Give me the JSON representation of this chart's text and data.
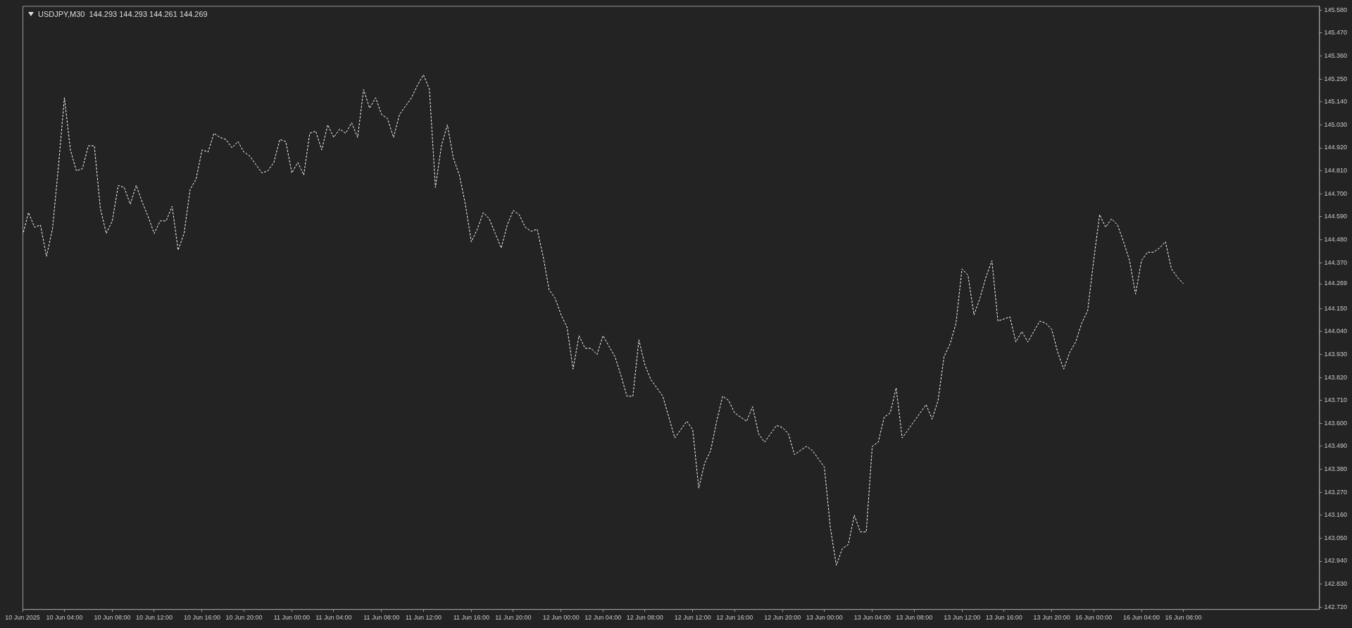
{
  "chart_data": {
    "type": "line",
    "title": "USDJPY,M30",
    "subtitle": "144.293 144.293 144.261 144.269",
    "categories": [
      "10 Jun 2025",
      null,
      null,
      null,
      null,
      null,
      null,
      "10 Jun 04:00",
      null,
      null,
      null,
      null,
      null,
      null,
      null,
      "10 Jun 08:00",
      null,
      null,
      null,
      null,
      null,
      null,
      "10 Jun 12:00",
      null,
      null,
      null,
      null,
      null,
      null,
      null,
      "10 Jun 16:00",
      null,
      null,
      null,
      null,
      null,
      null,
      "10 Jun 20:00",
      null,
      null,
      null,
      null,
      null,
      null,
      null,
      "11 Jun 00:00",
      null,
      null,
      null,
      null,
      null,
      null,
      "11 Jun 04:00",
      null,
      null,
      null,
      null,
      null,
      null,
      null,
      "11 Jun 08:00",
      null,
      null,
      null,
      null,
      null,
      null,
      "11 Jun 12:00",
      null,
      null,
      null,
      null,
      null,
      null,
      null,
      "11 Jun 16:00",
      null,
      null,
      null,
      null,
      null,
      null,
      "11 Jun 20:00",
      null,
      null,
      null,
      null,
      null,
      null,
      null,
      "12 Jun 00:00",
      null,
      null,
      null,
      null,
      null,
      null,
      "12 Jun 04:00",
      null,
      null,
      null,
      null,
      null,
      null,
      "12 Jun 08:00",
      null,
      null,
      null,
      null,
      null,
      null,
      null,
      "12 Jun 12:00",
      null,
      null,
      null,
      null,
      null,
      null,
      "12 Jun 16:00",
      null,
      null,
      null,
      null,
      null,
      null,
      null,
      "12 Jun 20:00",
      null,
      null,
      null,
      null,
      null,
      null,
      "13 Jun 00:00",
      null,
      null,
      null,
      null,
      null,
      null,
      null,
      "13 Jun 04:00",
      null,
      null,
      null,
      null,
      null,
      null,
      "13 Jun 08:00",
      null,
      null,
      null,
      null,
      null,
      null,
      null,
      "13 Jun 12:00",
      null,
      null,
      null,
      null,
      null,
      null,
      "13 Jun 16:00",
      null,
      null,
      null,
      null,
      null,
      null,
      null,
      "13 Jun 20:00",
      null,
      null,
      null,
      null,
      null,
      null,
      "16 Jun 00:00",
      null,
      null,
      null,
      null,
      null,
      null,
      null,
      "16 Jun 04:00",
      null,
      null,
      null,
      null,
      null,
      null,
      "16 Jun 08:00"
    ],
    "series": [
      {
        "color": "#ffffff",
        "values": [
          144.5,
          144.61,
          144.54,
          144.55,
          144.4,
          144.53,
          144.83,
          145.16,
          144.91,
          144.81,
          144.82,
          144.93,
          144.93,
          144.63,
          144.51,
          144.57,
          144.74,
          144.73,
          144.65,
          144.74,
          144.66,
          144.59,
          144.51,
          144.57,
          144.57,
          144.64,
          144.43,
          144.51,
          144.72,
          144.77,
          144.91,
          144.9,
          144.99,
          144.97,
          144.96,
          144.92,
          144.95,
          144.9,
          144.88,
          144.84,
          144.8,
          144.81,
          144.85,
          144.96,
          144.95,
          144.8,
          144.85,
          144.79,
          144.99,
          145.0,
          144.91,
          145.03,
          144.97,
          145.01,
          144.99,
          145.04,
          144.97,
          145.2,
          145.11,
          145.16,
          145.08,
          145.06,
          144.97,
          145.08,
          145.12,
          145.16,
          145.22,
          145.27,
          145.2,
          144.73,
          144.93,
          145.03,
          144.87,
          144.79,
          144.65,
          144.47,
          144.53,
          144.61,
          144.58,
          144.51,
          144.44,
          144.55,
          144.62,
          144.6,
          144.54,
          144.52,
          144.53,
          144.4,
          144.24,
          144.2,
          144.12,
          144.06,
          143.86,
          144.02,
          143.96,
          143.96,
          143.93,
          144.02,
          143.97,
          143.92,
          143.83,
          143.73,
          143.73,
          144.0,
          143.88,
          143.81,
          143.77,
          143.73,
          143.63,
          143.53,
          143.57,
          143.61,
          143.57,
          143.29,
          143.41,
          143.47,
          143.61,
          143.73,
          143.71,
          143.65,
          143.63,
          143.61,
          143.68,
          143.55,
          143.51,
          143.55,
          143.59,
          143.58,
          143.55,
          143.45,
          143.47,
          143.49,
          143.47,
          143.43,
          143.39,
          143.1,
          142.92,
          143.0,
          143.02,
          143.16,
          143.08,
          143.08,
          143.49,
          143.51,
          143.63,
          143.65,
          143.77,
          143.53,
          143.57,
          143.61,
          143.65,
          143.69,
          143.62,
          143.71,
          143.92,
          143.98,
          144.08,
          144.34,
          144.31,
          144.12,
          144.2,
          144.3,
          144.38,
          144.09,
          144.1,
          144.11,
          143.99,
          144.04,
          143.99,
          144.04,
          144.09,
          144.08,
          144.05,
          143.94,
          143.86,
          143.94,
          143.99,
          144.08,
          144.14,
          144.38,
          144.6,
          144.54,
          144.58,
          144.55,
          144.47,
          144.38,
          144.22,
          144.38,
          144.42,
          144.42,
          144.44,
          144.47,
          144.34,
          144.3,
          144.269
        ]
      }
    ],
    "ylim": [
      142.71,
      145.6
    ],
    "yticks": [
      {
        "value": 142.72,
        "label": "142.720"
      },
      {
        "value": 142.83,
        "label": "142.830"
      },
      {
        "value": 142.94,
        "label": "142.940"
      },
      {
        "value": 143.05,
        "label": "143.050"
      },
      {
        "value": 143.16,
        "label": "143.160"
      },
      {
        "value": 143.27,
        "label": "143.270"
      },
      {
        "value": 143.38,
        "label": "143.380"
      },
      {
        "value": 143.49,
        "label": "143.490"
      },
      {
        "value": 143.6,
        "label": "143.600"
      },
      {
        "value": 143.71,
        "label": "143.710"
      },
      {
        "value": 143.82,
        "label": "143.820"
      },
      {
        "value": 143.93,
        "label": "143.930"
      },
      {
        "value": 144.04,
        "label": "144.040"
      },
      {
        "value": 144.15,
        "label": "144.150"
      },
      {
        "value": 144.269,
        "label": "144.269"
      },
      {
        "value": 144.37,
        "label": "144.370"
      },
      {
        "value": 144.48,
        "label": "144.480"
      },
      {
        "value": 144.59,
        "label": "144.590"
      },
      {
        "value": 144.7,
        "label": "144.700"
      },
      {
        "value": 144.81,
        "label": "144.810"
      },
      {
        "value": 144.92,
        "label": "144.920"
      },
      {
        "value": 145.03,
        "label": "145.030"
      },
      {
        "value": 145.14,
        "label": "145.140"
      },
      {
        "value": 145.25,
        "label": "145.250"
      },
      {
        "value": 145.36,
        "label": "145.360"
      },
      {
        "value": 145.47,
        "label": "145.470"
      },
      {
        "value": 145.58,
        "label": "145.580"
      }
    ],
    "grid": false,
    "legend": false,
    "line_style": "dashed"
  }
}
